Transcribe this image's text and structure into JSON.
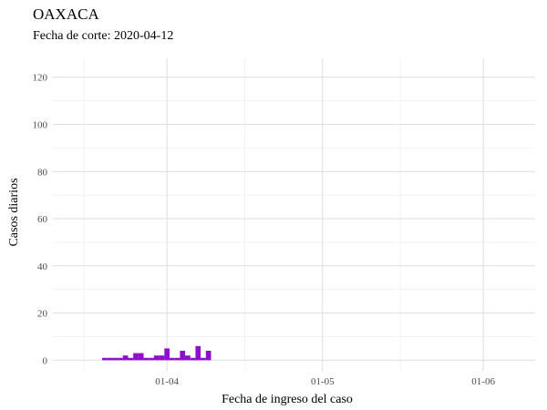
{
  "chart_data": {
    "type": "bar",
    "title": "OAXACA",
    "subtitle": "Fecha de corte: 2020-04-12",
    "xlabel": "Fecha de ingreso del caso",
    "ylabel": "Casos diarios",
    "ylim": [
      -4.5,
      128
    ],
    "xlim": [
      "2020-03-10",
      "2020-06-11"
    ],
    "y_ticks": [
      0,
      20,
      40,
      60,
      80,
      100,
      120
    ],
    "x_ticks": [
      {
        "date": "2020-04-01",
        "label": "01-04"
      },
      {
        "date": "2020-05-01",
        "label": "01-05"
      },
      {
        "date": "2020-06-01",
        "label": "01-06"
      }
    ],
    "x_minor_ticks": [
      "2020-03-16",
      "2020-04-16",
      "2020-05-16"
    ],
    "grid": true,
    "legend": "none",
    "bar_color": "#8E0FC9",
    "dates": [
      "2020-03-20",
      "2020-03-21",
      "2020-03-22",
      "2020-03-23",
      "2020-03-24",
      "2020-03-25",
      "2020-03-26",
      "2020-03-27",
      "2020-03-28",
      "2020-03-29",
      "2020-03-30",
      "2020-03-31",
      "2020-04-01",
      "2020-04-02",
      "2020-04-03",
      "2020-04-04",
      "2020-04-05",
      "2020-04-06",
      "2020-04-07",
      "2020-04-08",
      "2020-04-09"
    ],
    "values": [
      1,
      1,
      1,
      1,
      2,
      1,
      3,
      3,
      1,
      1,
      2,
      2,
      5,
      1,
      1,
      4,
      2,
      1,
      6,
      1,
      4
    ]
  }
}
